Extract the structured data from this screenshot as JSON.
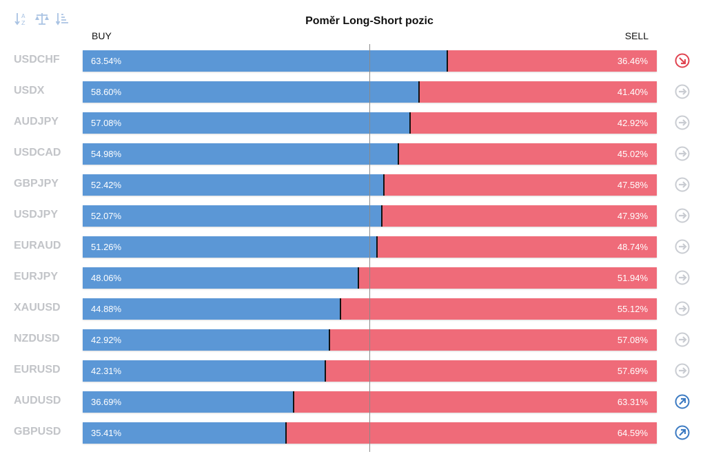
{
  "toolbar": {
    "icons": [
      "sort-alpha-icon",
      "balance-icon",
      "sort-list-icon"
    ]
  },
  "chart_data": {
    "type": "bar",
    "title": "Poměr Long-Short pozic",
    "buy_label": "BUY",
    "sell_label": "SELL",
    "categories": [
      "USDCHF",
      "USDX",
      "AUDJPY",
      "USDCAD",
      "GBPJPY",
      "USDJPY",
      "EURAUD",
      "EURJPY",
      "XAUUSD",
      "NZDUSD",
      "EURUSD",
      "AUDUSD",
      "GBPUSD"
    ],
    "series": [
      {
        "name": "BUY",
        "color": "#5b97d6",
        "values": [
          63.54,
          58.6,
          57.08,
          54.98,
          52.42,
          52.07,
          51.26,
          48.06,
          44.88,
          42.92,
          42.31,
          36.69,
          35.41
        ],
        "labels": [
          "63.54%",
          "58.60%",
          "57.08%",
          "54.98%",
          "52.42%",
          "52.07%",
          "51.26%",
          "48.06%",
          "44.88%",
          "42.92%",
          "42.31%",
          "36.69%",
          "35.41%"
        ]
      },
      {
        "name": "SELL",
        "color": "#ef6b79",
        "values": [
          36.46,
          41.4,
          42.92,
          45.02,
          47.58,
          47.93,
          48.74,
          51.94,
          55.12,
          57.08,
          57.69,
          63.31,
          64.59
        ],
        "labels": [
          "36.46%",
          "41.40%",
          "42.92%",
          "45.02%",
          "47.58%",
          "47.93%",
          "48.74%",
          "51.94%",
          "55.12%",
          "57.08%",
          "57.69%",
          "63.31%",
          "64.59%"
        ]
      }
    ],
    "signals": [
      "down",
      "neutral",
      "neutral",
      "neutral",
      "neutral",
      "neutral",
      "neutral",
      "neutral",
      "neutral",
      "neutral",
      "neutral",
      "up",
      "up"
    ],
    "signal_colors": {
      "down": "#e0424f",
      "neutral": "#c9ccd2",
      "up": "#3b7ac2"
    },
    "xlim": [
      0,
      100
    ],
    "grid": false,
    "legend": "top"
  }
}
